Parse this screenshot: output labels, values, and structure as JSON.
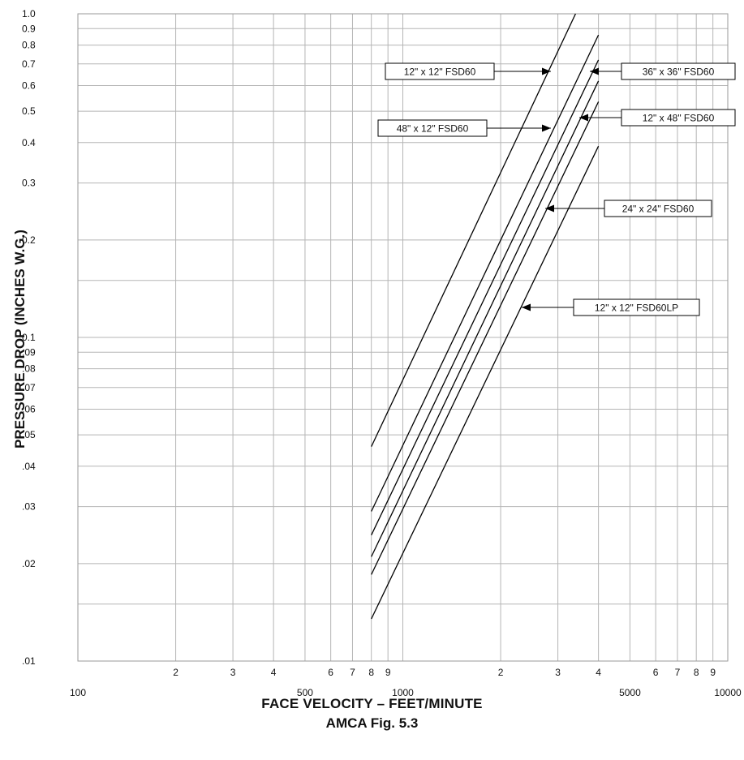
{
  "chart_data": {
    "type": "line",
    "xscale": "log",
    "yscale": "log",
    "xlim": [
      100,
      10000
    ],
    "ylim": [
      0.01,
      1.0
    ],
    "grid": true,
    "xlabel": "FACE VELOCITY – FEET/MINUTE",
    "ylabel": "PRESSURE DROP (INCHES W.G.)",
    "caption": "AMCA Fig. 5.3",
    "x_tick_labels": [
      {
        "x": 100,
        "label": "100",
        "row": "major"
      },
      {
        "x": 200,
        "label": "2",
        "row": "minor"
      },
      {
        "x": 300,
        "label": "3",
        "row": "minor"
      },
      {
        "x": 400,
        "label": "4",
        "row": "minor"
      },
      {
        "x": 500,
        "label": "500",
        "row": "major"
      },
      {
        "x": 600,
        "label": "6",
        "row": "minor"
      },
      {
        "x": 700,
        "label": "7",
        "row": "minor"
      },
      {
        "x": 800,
        "label": "8",
        "row": "minor"
      },
      {
        "x": 900,
        "label": "9",
        "row": "minor"
      },
      {
        "x": 1000,
        "label": "1000",
        "row": "major"
      },
      {
        "x": 2000,
        "label": "2",
        "row": "minor"
      },
      {
        "x": 3000,
        "label": "3",
        "row": "minor"
      },
      {
        "x": 4000,
        "label": "4",
        "row": "minor"
      },
      {
        "x": 5000,
        "label": "5000",
        "row": "major"
      },
      {
        "x": 6000,
        "label": "6",
        "row": "minor"
      },
      {
        "x": 7000,
        "label": "7",
        "row": "minor"
      },
      {
        "x": 8000,
        "label": "8",
        "row": "minor"
      },
      {
        "x": 9000,
        "label": "9",
        "row": "minor"
      },
      {
        "x": 10000,
        "label": "10000",
        "row": "major"
      }
    ],
    "y_tick_labels": [
      {
        "y": 0.01,
        "label": ".01"
      },
      {
        "y": 0.02,
        "label": ".02"
      },
      {
        "y": 0.03,
        "label": ".03"
      },
      {
        "y": 0.04,
        "label": ".04"
      },
      {
        "y": 0.05,
        "label": ".05"
      },
      {
        "y": 0.06,
        "label": ".06"
      },
      {
        "y": 0.07,
        "label": ".07"
      },
      {
        "y": 0.08,
        "label": ".08"
      },
      {
        "y": 0.09,
        "label": ".09"
      },
      {
        "y": 0.1,
        "label": "0.1"
      },
      {
        "y": 0.2,
        "label": "0.2"
      },
      {
        "y": 0.3,
        "label": "0.3"
      },
      {
        "y": 0.4,
        "label": "0.4"
      },
      {
        "y": 0.5,
        "label": "0.5"
      },
      {
        "y": 0.6,
        "label": "0.6"
      },
      {
        "y": 0.7,
        "label": "0.7"
      },
      {
        "y": 0.8,
        "label": "0.8"
      },
      {
        "y": 0.9,
        "label": "0.9"
      },
      {
        "y": 1.0,
        "label": "1.0"
      }
    ],
    "series": [
      {
        "name": "12\" x 12\" FSD60",
        "x": [
          800,
          3400
        ],
        "y": [
          0.046,
          1.0
        ]
      },
      {
        "name": "48\" x 12\" FSD60",
        "x": [
          800,
          4000
        ],
        "y": [
          0.029,
          0.86
        ]
      },
      {
        "name": "36\" x 36\" FSD60",
        "x": [
          800,
          4000
        ],
        "y": [
          0.0245,
          0.72
        ]
      },
      {
        "name": "12\" x 48\" FSD60",
        "x": [
          800,
          4000
        ],
        "y": [
          0.021,
          0.62
        ]
      },
      {
        "name": "24\" x 24\" FSD60",
        "x": [
          800,
          4000
        ],
        "y": [
          0.0185,
          0.535
        ]
      },
      {
        "name": "12\" x 12\" FSD60LP",
        "x": [
          800,
          4000
        ],
        "y": [
          0.0135,
          0.39
        ]
      }
    ],
    "annotations": [
      {
        "label": "12\" x 12\" FSD60",
        "series": 0,
        "side": "left"
      },
      {
        "label": "48\" x 12\" FSD60",
        "series": 1,
        "side": "left"
      },
      {
        "label": "36\" x 36\" FSD60",
        "series": 2,
        "side": "right"
      },
      {
        "label": "12\" x 48\" FSD60",
        "series": 3,
        "side": "right"
      },
      {
        "label": "24\" x 24\" FSD60",
        "series": 4,
        "side": "right"
      },
      {
        "label": "12\" x 12\" FSD60LP",
        "series": 5,
        "side": "right"
      }
    ],
    "style": {
      "grid_color": "#b5b5b5",
      "line_color": "#000000",
      "frame_color": "#999999"
    }
  }
}
